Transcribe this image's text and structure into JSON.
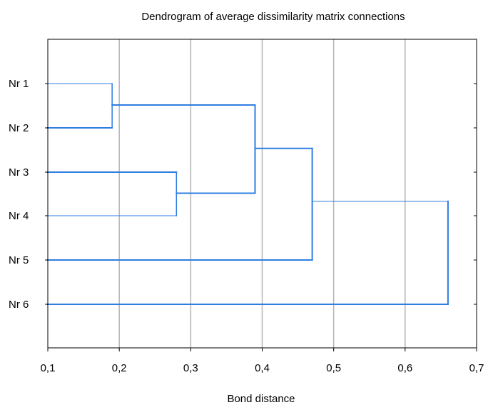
{
  "chart_data": {
    "type": "dendrogram",
    "title": "Dendrogram of average dissimilarity matrix connections",
    "xlabel": "Bond distance",
    "ylabel": "",
    "xlim": [
      0.1,
      0.7
    ],
    "x_ticks": [
      "0,1",
      "0,2",
      "0,3",
      "0,4",
      "0,5",
      "0,6",
      "0,7"
    ],
    "grid": "vertical",
    "leaves": [
      "Nr 1",
      "Nr 2",
      "Nr 3",
      "Nr 4",
      "Nr 5",
      "Nr 6"
    ],
    "merges": [
      {
        "a": "Nr 1",
        "b": "Nr 2",
        "distance": 0.19
      },
      {
        "a": "Nr 3",
        "b": "Nr 4",
        "distance": 0.28
      },
      {
        "a": "Nr 1 + Nr 2",
        "b": "Nr 3 + Nr 4",
        "distance": 0.39
      },
      {
        "a": "Nr 1-4",
        "b": "Nr 5",
        "distance": 0.47
      },
      {
        "a": "Nr 1-5",
        "b": "Nr 6",
        "distance": 0.66
      }
    ]
  },
  "colors": {
    "link": "#2f7de1",
    "grid": "#b4b4b4",
    "frame": "#000000"
  }
}
